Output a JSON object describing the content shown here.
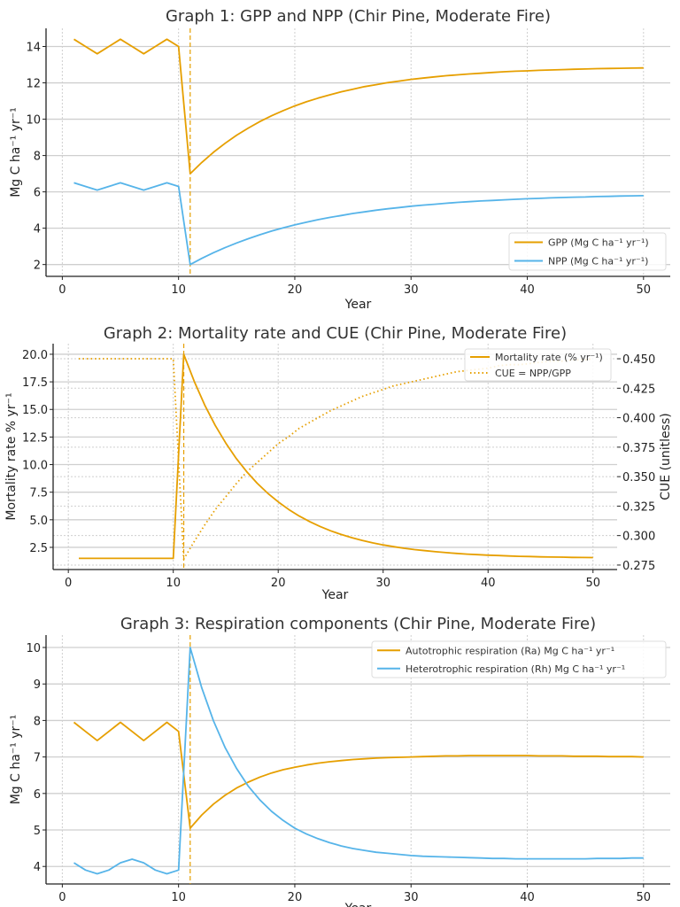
{
  "colors": {
    "orange": "#E69F00",
    "blue": "#56B4E9",
    "grid": "#cfcfcf"
  },
  "chart_data": [
    {
      "type": "line",
      "title": "Graph 1: GPP and NPP (Chir Pine, Moderate Fire)",
      "xlabel": "Year",
      "ylabel": "Mg C ha⁻¹ yr⁻¹",
      "xlim": [
        -1.4,
        52.3
      ],
      "ylim": [
        1.35,
        15.0
      ],
      "xticks": [
        0,
        10,
        20,
        30,
        40,
        50
      ],
      "yticks": [
        2,
        4,
        6,
        8,
        10,
        12,
        14
      ],
      "ytick_labels": [
        "2",
        "4",
        "6",
        "8",
        "10",
        "12",
        "14"
      ],
      "grid": true,
      "legend": "bottom-right",
      "fire_year": 11,
      "x": [
        1,
        2,
        3,
        4,
        5,
        6,
        7,
        8,
        9,
        10,
        11,
        12,
        13,
        14,
        15,
        16,
        17,
        18,
        19,
        20,
        21,
        22,
        23,
        24,
        25,
        26,
        27,
        28,
        29,
        30,
        31,
        32,
        33,
        34,
        35,
        36,
        37,
        38,
        39,
        40,
        41,
        42,
        43,
        44,
        45,
        46,
        47,
        48,
        49,
        50
      ],
      "series": [
        {
          "name": "GPP (Mg C ha⁻¹ yr⁻¹)",
          "color": "#E69F00",
          "style": "solid",
          "values": [
            14.4,
            14.0,
            13.6,
            14.0,
            14.4,
            14.0,
            13.6,
            14.0,
            14.4,
            14.0,
            7.0,
            7.62,
            8.18,
            8.67,
            9.12,
            9.51,
            9.87,
            10.19,
            10.47,
            10.73,
            10.96,
            11.16,
            11.34,
            11.51,
            11.65,
            11.79,
            11.9,
            12.01,
            12.1,
            12.19,
            12.26,
            12.33,
            12.39,
            12.44,
            12.49,
            12.53,
            12.57,
            12.61,
            12.64,
            12.66,
            12.69,
            12.71,
            12.73,
            12.75,
            12.76,
            12.78,
            12.79,
            12.8,
            12.81,
            12.82
          ]
        },
        {
          "name": "NPP (Mg C ha⁻¹ yr⁻¹)",
          "color": "#56B4E9",
          "style": "solid",
          "values": [
            6.5,
            6.3,
            6.1,
            6.3,
            6.5,
            6.3,
            6.1,
            6.3,
            6.5,
            6.3,
            2.0,
            2.34,
            2.65,
            2.93,
            3.19,
            3.42,
            3.64,
            3.84,
            4.02,
            4.18,
            4.33,
            4.47,
            4.59,
            4.7,
            4.81,
            4.9,
            4.99,
            5.07,
            5.14,
            5.21,
            5.27,
            5.32,
            5.37,
            5.42,
            5.46,
            5.5,
            5.53,
            5.56,
            5.59,
            5.62,
            5.64,
            5.67,
            5.69,
            5.71,
            5.72,
            5.74,
            5.75,
            5.77,
            5.78,
            5.79
          ]
        }
      ]
    },
    {
      "type": "line",
      "title": "Graph 2: Mortality rate and CUE (Chir Pine, Moderate Fire)",
      "xlabel": "Year",
      "ylabel": "Mortality rate % yr⁻¹",
      "y2label": "CUE (unitless)",
      "xlim": [
        -1.45,
        52.3
      ],
      "ylim": [
        0.49,
        20.96
      ],
      "y2lim": [
        0.2712,
        0.4628
      ],
      "xticks": [
        0,
        10,
        20,
        30,
        40,
        50
      ],
      "yticks": [
        2.5,
        5.0,
        7.5,
        10.0,
        12.5,
        15.0,
        17.5,
        20.0
      ],
      "ytick_labels": [
        "2.5",
        "5.0",
        "7.5",
        "10.0",
        "12.5",
        "15.0",
        "17.5",
        "20.0"
      ],
      "y2ticks": [
        0.275,
        0.3,
        0.325,
        0.35,
        0.375,
        0.4,
        0.425,
        0.45
      ],
      "y2tick_labels": [
        "0.275",
        "0.300",
        "0.325",
        "0.350",
        "0.375",
        "0.400",
        "0.425",
        "0.450"
      ],
      "grid": true,
      "legend": "top-right",
      "fire_year": 11,
      "x": [
        1,
        2,
        3,
        4,
        5,
        6,
        7,
        8,
        9,
        10,
        11,
        12,
        13,
        14,
        15,
        16,
        17,
        18,
        19,
        20,
        21,
        22,
        23,
        24,
        25,
        26,
        27,
        28,
        29,
        30,
        31,
        32,
        33,
        34,
        35,
        36,
        37,
        38,
        39,
        40,
        41,
        42,
        43,
        44,
        45,
        46,
        47,
        48,
        49,
        50
      ],
      "series": [
        {
          "name": "Mortality rate (% yr⁻¹)",
          "color": "#E69F00",
          "style": "solid",
          "axis": "left",
          "values": [
            1.5,
            1.5,
            1.5,
            1.5,
            1.5,
            1.5,
            1.5,
            1.5,
            1.5,
            1.5,
            20.0,
            17.54,
            15.4,
            13.55,
            11.95,
            10.56,
            9.35,
            8.31,
            7.4,
            6.62,
            5.93,
            5.34,
            4.83,
            4.39,
            4.0,
            3.67,
            3.38,
            3.13,
            2.91,
            2.72,
            2.56,
            2.42,
            2.3,
            2.2,
            2.1,
            2.02,
            1.95,
            1.89,
            1.84,
            1.79,
            1.76,
            1.72,
            1.69,
            1.67,
            1.64,
            1.62,
            1.61,
            1.59,
            1.58,
            1.57
          ]
        },
        {
          "name": "CUE = NPP/GPP",
          "color": "#E69F00",
          "style": "dotted",
          "axis": "right",
          "values": [
            0.45,
            0.45,
            0.45,
            0.45,
            0.45,
            0.45,
            0.45,
            0.45,
            0.45,
            0.45,
            0.28,
            0.295,
            0.309,
            0.322,
            0.333,
            0.344,
            0.354,
            0.362,
            0.37,
            0.378,
            0.384,
            0.391,
            0.396,
            0.401,
            0.406,
            0.41,
            0.414,
            0.418,
            0.421,
            0.424,
            0.427,
            0.429,
            0.431,
            0.433,
            0.435,
            0.437,
            0.439,
            0.44,
            0.441,
            0.442,
            0.444,
            0.445,
            0.445,
            0.446,
            0.447,
            0.448,
            0.448,
            0.449,
            0.449,
            0.45
          ]
        }
      ]
    },
    {
      "type": "line",
      "title": "Graph 3: Respiration components (Chir Pine, Moderate Fire)",
      "xlabel": "Year",
      "ylabel": "Mg C ha⁻¹ yr⁻¹",
      "xlim": [
        -1.4,
        52.3
      ],
      "ylim": [
        3.52,
        10.34
      ],
      "xticks": [
        0,
        10,
        20,
        30,
        40,
        50
      ],
      "yticks": [
        4,
        5,
        6,
        7,
        8,
        9,
        10
      ],
      "ytick_labels": [
        "4",
        "5",
        "6",
        "7",
        "8",
        "9",
        "10"
      ],
      "grid": true,
      "legend": "top-right",
      "fire_year": 11,
      "x": [
        1,
        2,
        3,
        4,
        5,
        6,
        7,
        8,
        9,
        10,
        11,
        12,
        13,
        14,
        15,
        16,
        17,
        18,
        19,
        20,
        21,
        22,
        23,
        24,
        25,
        26,
        27,
        28,
        29,
        30,
        31,
        32,
        33,
        34,
        35,
        36,
        37,
        38,
        39,
        40,
        41,
        42,
        43,
        44,
        45,
        46,
        47,
        48,
        49,
        50
      ],
      "series": [
        {
          "name": "Autotrophic respiration (Ra) Mg C ha⁻¹ yr⁻¹",
          "color": "#E69F00",
          "style": "solid",
          "values": [
            7.95,
            7.7,
            7.45,
            7.7,
            7.95,
            7.7,
            7.45,
            7.7,
            7.95,
            7.7,
            5.05,
            5.41,
            5.71,
            5.95,
            6.15,
            6.31,
            6.45,
            6.56,
            6.65,
            6.72,
            6.78,
            6.83,
            6.87,
            6.9,
            6.93,
            6.95,
            6.97,
            6.98,
            6.99,
            7.0,
            7.01,
            7.02,
            7.03,
            7.03,
            7.04,
            7.04,
            7.04,
            7.04,
            7.04,
            7.04,
            7.03,
            7.03,
            7.03,
            7.02,
            7.02,
            7.02,
            7.01,
            7.01,
            7.01,
            7.0
          ]
        },
        {
          "name": "Heterotrophic respiration (Rh) Mg C ha⁻¹ yr⁻¹",
          "color": "#56B4E9",
          "style": "solid",
          "values": [
            4.1,
            3.9,
            3.8,
            3.9,
            4.1,
            4.2,
            4.1,
            3.9,
            3.8,
            3.9,
            10.0,
            8.89,
            7.99,
            7.26,
            6.68,
            6.2,
            5.82,
            5.51,
            5.26,
            5.05,
            4.89,
            4.76,
            4.65,
            4.56,
            4.49,
            4.44,
            4.39,
            4.36,
            4.33,
            4.3,
            4.28,
            4.27,
            4.26,
            4.25,
            4.24,
            4.23,
            4.22,
            4.22,
            4.21,
            4.21,
            4.21,
            4.21,
            4.21,
            4.21,
            4.21,
            4.22,
            4.22,
            4.22,
            4.23,
            4.23
          ]
        }
      ]
    }
  ]
}
